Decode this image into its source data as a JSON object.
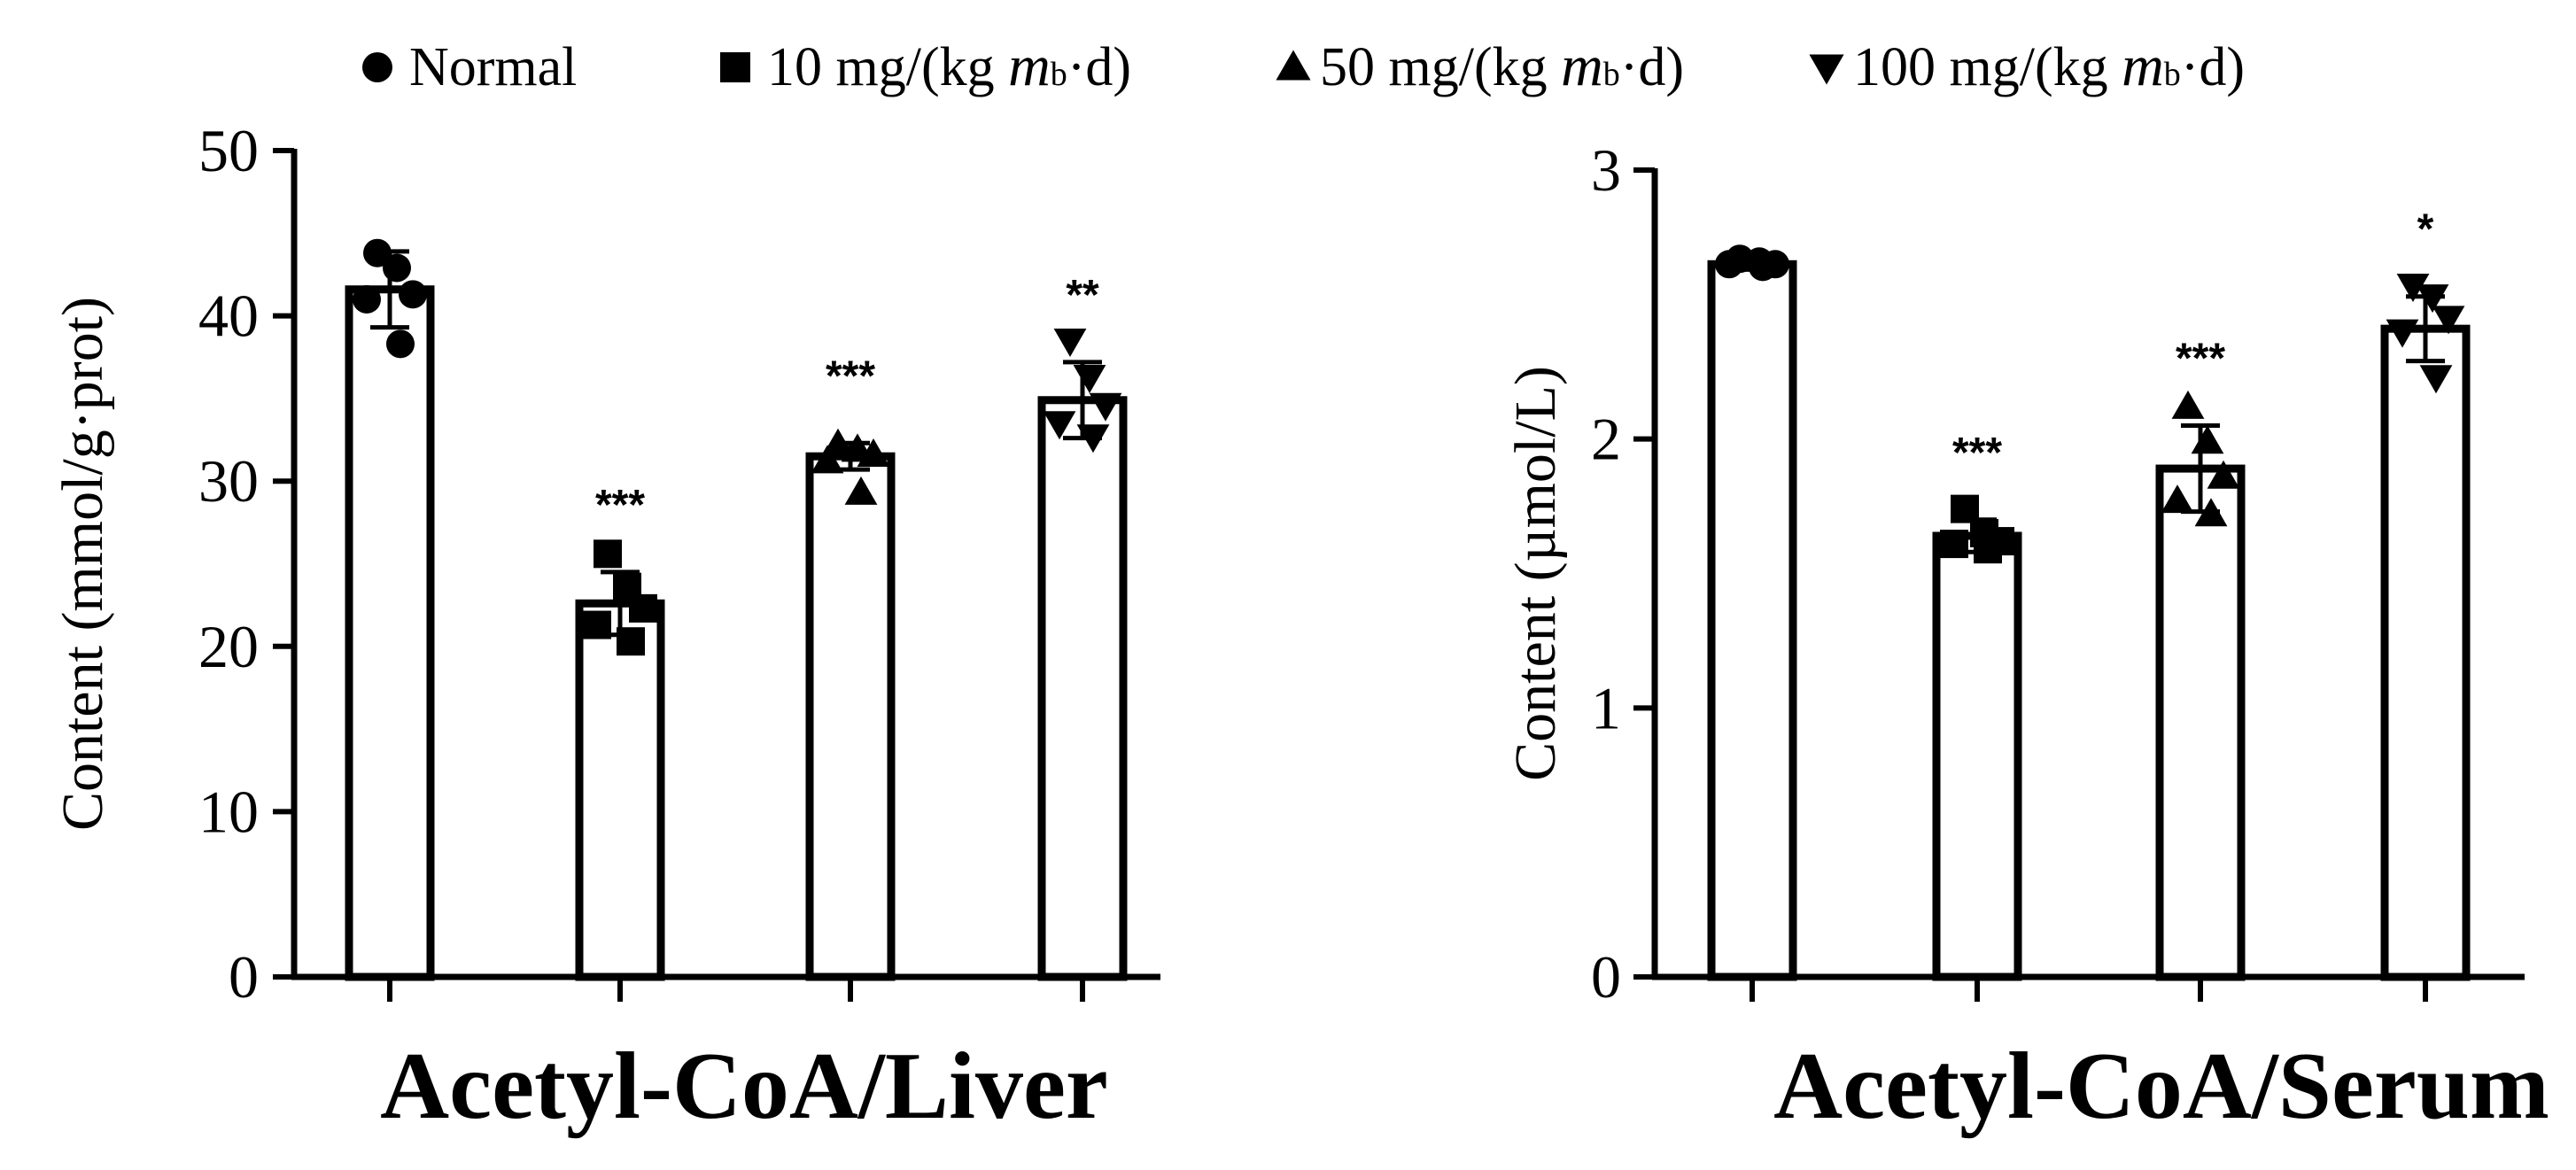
{
  "legend": {
    "items": [
      {
        "marker": "circle",
        "parts": [
          {
            "text": "Normal",
            "style": "normal"
          }
        ]
      },
      {
        "marker": "square",
        "parts": [
          {
            "text": "10 mg/(kg ",
            "style": "normal"
          },
          {
            "text": "m",
            "style": "italic"
          },
          {
            "text": "b",
            "style": "sub"
          },
          {
            "text": "·d)",
            "style": "normal"
          }
        ]
      },
      {
        "marker": "triangle-up",
        "parts": [
          {
            "text": "50 mg/(kg ",
            "style": "normal"
          },
          {
            "text": "m",
            "style": "italic"
          },
          {
            "text": "b",
            "style": "sub"
          },
          {
            "text": "·d)",
            "style": "normal"
          }
        ]
      },
      {
        "marker": "triangle-down",
        "parts": [
          {
            "text": "100 mg/(kg ",
            "style": "normal"
          },
          {
            "text": "m",
            "style": "italic"
          },
          {
            "text": "b",
            "style": "sub"
          },
          {
            "text": "·d)",
            "style": "normal"
          }
        ]
      }
    ]
  },
  "chart_data": [
    {
      "type": "bar",
      "title": "Acetyl-CoA/Liver",
      "xlabel": "",
      "ylabel": "Content (mmol/g·prot)",
      "ylim": [
        0,
        50
      ],
      "yticks": [
        0,
        10,
        20,
        30,
        40,
        50
      ],
      "grid": false,
      "legend_position": "top",
      "categories": [
        "Normal",
        "10 mg/(kg mb·d)",
        "50 mg/(kg mb·d)",
        "100 mg/(kg mb·d)"
      ],
      "markers": [
        "circle",
        "square",
        "triangle-up",
        "triangle-down"
      ],
      "values": [
        41.6,
        22.6,
        31.5,
        34.9
      ],
      "error": [
        2.3,
        1.9,
        0.8,
        2.3
      ],
      "points": [
        [
          43.8,
          42.9,
          41.3,
          41.0,
          38.3
        ],
        [
          25.6,
          23.6,
          22.3,
          21.3,
          20.3
        ],
        [
          32.2,
          31.9,
          31.6,
          31.2,
          29.3
        ],
        [
          38.5,
          36.3,
          34.6,
          33.5,
          32.7
        ]
      ],
      "significance": [
        "",
        "***",
        "***",
        "**"
      ]
    },
    {
      "type": "bar",
      "title": "Acetyl-CoA/Serum",
      "xlabel": "",
      "ylabel": "Content (µmol/L)",
      "ylim": [
        0,
        3
      ],
      "yticks": [
        0,
        1,
        2,
        3
      ],
      "grid": false,
      "legend_position": "top",
      "categories": [
        "Normal",
        "10 mg/(kg mb·d)",
        "50 mg/(kg mb·d)",
        "100 mg/(kg mb·d)"
      ],
      "markers": [
        "circle",
        "square",
        "triangle-up",
        "triangle-down"
      ],
      "values": [
        2.65,
        1.64,
        1.89,
        2.41
      ],
      "error": [
        0.02,
        0.06,
        0.16,
        0.12
      ],
      "points": [
        [
          2.67,
          2.66,
          2.65,
          2.65,
          2.64
        ],
        [
          1.74,
          1.65,
          1.62,
          1.61,
          1.59
        ],
        [
          2.12,
          1.99,
          1.86,
          1.77,
          1.72
        ],
        [
          2.57,
          2.53,
          2.45,
          2.4,
          2.23
        ]
      ],
      "significance": [
        "",
        "***",
        "***",
        "*"
      ]
    }
  ]
}
